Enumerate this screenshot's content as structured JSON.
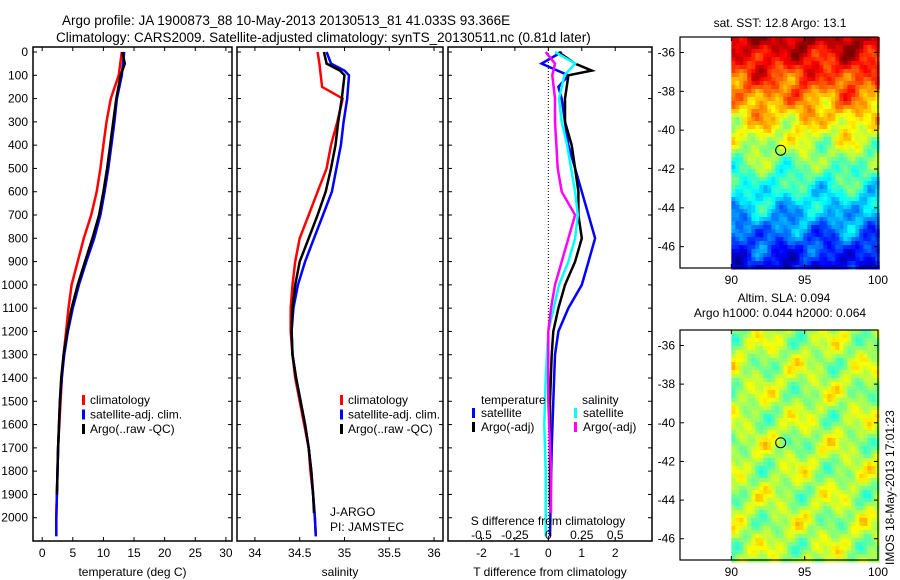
{
  "title": {
    "line1": "Argo profile: JA 1900873_88 10-May-2013 20130513_81 41.033S 93.366E",
    "line2": "Climatology: CARS2009. Satellite-adjusted climatology: synTS_20130511.nc (0.81d later)"
  },
  "colors": {
    "climatology": "#ff0000",
    "satellite": "#0000ff",
    "argo": "#000000",
    "sal_satellite": "#00ffff",
    "sal_argo": "#ff00ff"
  },
  "chart_data": [
    {
      "type": "line",
      "id": "temp",
      "xlabel": "temperature (deg C)",
      "xlim": [
        -1.5,
        31
      ],
      "ylim": [
        0,
        2100
      ],
      "yreversed": true,
      "yticks": [
        0,
        100,
        200,
        300,
        400,
        500,
        600,
        700,
        800,
        900,
        1000,
        1100,
        1200,
        1300,
        1400,
        1500,
        1600,
        1700,
        1800,
        1900,
        2000
      ],
      "xticks": [
        0,
        5,
        10,
        15,
        20,
        25,
        30
      ],
      "legend": [
        "climatology",
        "satellite-adj. clim.",
        "Argo(..raw -QC)"
      ],
      "series": [
        {
          "name": "climatology",
          "color": "#ff0000",
          "depth": [
            0,
            100,
            200,
            300,
            400,
            500,
            600,
            700,
            800,
            900,
            1000,
            1100,
            1200,
            1300,
            1400,
            1500,
            1600,
            1700,
            1800,
            1900,
            2000,
            2080
          ],
          "values": [
            13,
            12.5,
            11.2,
            10.5,
            10,
            9.5,
            8.9,
            8,
            6.8,
            5.8,
            4.8,
            4.3,
            3.9,
            3.5,
            3.2,
            3.0,
            2.8,
            2.6,
            2.5,
            2.4,
            2.3,
            2.3
          ]
        },
        {
          "name": "satellite-adj. clim.",
          "color": "#0000ff",
          "depth": [
            0,
            50,
            100,
            200,
            300,
            400,
            500,
            600,
            700,
            800,
            900,
            1000,
            1100,
            1200,
            1300,
            1400,
            1500,
            1600,
            1700,
            1800,
            1900,
            2000,
            2080
          ],
          "values": [
            13.4,
            13.2,
            13,
            12.2,
            11.8,
            11.3,
            10.8,
            10.2,
            9.5,
            8.5,
            7.2,
            6,
            5,
            4.2,
            3.6,
            3.2,
            2.9,
            2.75,
            2.6,
            2.5,
            2.4,
            2.3,
            2.3
          ]
        },
        {
          "name": "Argo(..raw -QC)",
          "color": "#000000",
          "depth": [
            0,
            50,
            100,
            200,
            300,
            400,
            500,
            600,
            700,
            800,
            900,
            1000,
            1100,
            1200,
            1300,
            1400,
            1500,
            1600,
            1700,
            1800,
            1900
          ],
          "values": [
            13.1,
            13.5,
            12.8,
            12.1,
            11.6,
            11.1,
            10.6,
            10,
            9.3,
            8.2,
            7,
            5.8,
            4.8,
            4.1,
            3.5,
            3.1,
            2.9,
            2.75,
            2.6,
            2.5,
            2.4
          ]
        }
      ]
    },
    {
      "type": "line",
      "id": "sal",
      "xlabel": "salinity",
      "xlim": [
        33.8,
        36.1
      ],
      "ylim": [
        0,
        2100
      ],
      "yreversed": true,
      "xticks": [
        34,
        34.5,
        35,
        35.5,
        36
      ],
      "legend": [
        "climatology",
        "satellite-adj. clim.",
        "Argo(..raw -QC)"
      ],
      "annotation": [
        "J-ARGO",
        "PI: JAMSTEC"
      ],
      "series": [
        {
          "name": "climatology",
          "color": "#ff0000",
          "depth": [
            0,
            50,
            150,
            200,
            300,
            400,
            500,
            600,
            700,
            800,
            900,
            1000,
            1100,
            1200,
            1300,
            1400,
            1500,
            1600,
            1700,
            1800,
            1900,
            2000,
            2080
          ],
          "values": [
            34.7,
            34.72,
            34.75,
            34.98,
            34.92,
            34.85,
            34.8,
            34.7,
            34.6,
            34.5,
            34.45,
            34.42,
            34.4,
            34.4,
            34.42,
            34.45,
            34.5,
            34.55,
            34.6,
            34.62,
            34.65,
            34.67,
            34.68
          ]
        },
        {
          "name": "satellite-adj. clim.",
          "color": "#0000ff",
          "depth": [
            0,
            50,
            80,
            100,
            200,
            300,
            400,
            500,
            600,
            700,
            800,
            900,
            1000,
            1100,
            1200,
            1300,
            1400,
            1500,
            1600,
            1700,
            1800,
            1900,
            2000,
            2080
          ],
          "values": [
            34.8,
            34.85,
            35.0,
            35.05,
            35.03,
            34.99,
            34.96,
            34.91,
            34.86,
            34.76,
            34.66,
            34.56,
            34.48,
            34.43,
            34.41,
            34.42,
            34.46,
            34.51,
            34.56,
            34.6,
            34.63,
            34.65,
            34.67,
            34.68
          ]
        },
        {
          "name": "Argo(..raw -QC)",
          "color": "#000000",
          "depth": [
            0,
            50,
            80,
            100,
            200,
            300,
            400,
            500,
            600,
            700,
            800,
            900,
            1000,
            1100,
            1200,
            1300,
            1400,
            1500,
            1600,
            1700,
            1800,
            1900,
            1980
          ],
          "values": [
            34.77,
            34.8,
            34.95,
            35.0,
            34.97,
            34.93,
            34.9,
            34.85,
            34.79,
            34.7,
            34.6,
            34.5,
            34.45,
            34.42,
            34.41,
            34.42,
            34.46,
            34.51,
            34.56,
            34.6,
            34.63,
            34.65,
            34.66
          ]
        }
      ]
    },
    {
      "type": "line",
      "id": "diff",
      "xlabel": "T difference from climatology",
      "x2label": "S difference from climatology",
      "xlim": [
        -3,
        3.1
      ],
      "ylim": [
        0,
        2100
      ],
      "yreversed": true,
      "xticks": [
        -2,
        -1,
        0,
        1,
        2
      ],
      "x2ticks": [
        "-0.5",
        "-0.25",
        "0",
        "0.25",
        "0.5"
      ],
      "s_scale": 4,
      "legend": {
        "temp_header": "temperature",
        "sal_header": "salinity",
        "items": [
          "satellite",
          "Argo(-adj)",
          "satellite",
          "Argo(-adj)"
        ]
      },
      "series": [
        {
          "name": "temperature satellite",
          "color": "#0000ff",
          "unit": "T",
          "depth": [
            0,
            50,
            100,
            150,
            200,
            300,
            400,
            500,
            600,
            700,
            800,
            900,
            1000,
            1100,
            1200,
            1300,
            1500,
            1700,
            2080
          ],
          "values": [
            0.4,
            -0.2,
            0.6,
            0.3,
            0.4,
            0.5,
            0.6,
            0.8,
            1.0,
            1.2,
            1.4,
            1.2,
            1.0,
            0.6,
            0.3,
            0.2,
            0.15,
            0.1,
            0.05
          ]
        },
        {
          "name": "temperature Argo(-adj)",
          "color": "#000000",
          "unit": "T",
          "depth": [
            0,
            50,
            80,
            100,
            200,
            300,
            400,
            500,
            600,
            700,
            800,
            900,
            1000,
            1100,
            1200,
            1300,
            1500,
            1700,
            1950
          ],
          "values": [
            0.3,
            0.8,
            1.3,
            0.6,
            0.5,
            0.5,
            0.7,
            0.8,
            0.9,
            0.9,
            1.0,
            0.8,
            0.5,
            0.3,
            0.15,
            0.1,
            0.05,
            0.05,
            0.05
          ]
        },
        {
          "name": "salinity satellite",
          "color": "#00ffff",
          "unit": "S",
          "depth": [
            0,
            50,
            100,
            200,
            300,
            400,
            500,
            600,
            700,
            800,
            900,
            1000,
            1100,
            1200,
            1400,
            1600,
            1800,
            2080
          ],
          "values": [
            0.05,
            0.2,
            0.12,
            0.08,
            0.1,
            0.14,
            0.17,
            0.2,
            0.22,
            0.2,
            0.15,
            0.08,
            0.04,
            0.0,
            -0.02,
            -0.03,
            -0.02,
            -0.02
          ]
        },
        {
          "name": "salinity Argo(-adj)",
          "color": "#ff00ff",
          "unit": "S",
          "depth": [
            0,
            50,
            100,
            200,
            300,
            400,
            500,
            600,
            700,
            800,
            900,
            1000,
            1100,
            1200,
            1500,
            1800,
            1980
          ],
          "values": [
            -0.02,
            0.05,
            0.03,
            0.05,
            0.05,
            0.06,
            0.07,
            0.1,
            0.2,
            0.15,
            0.1,
            0.05,
            0.02,
            0.0,
            0.0,
            0.02,
            0.02
          ]
        }
      ]
    },
    {
      "type": "heatmap",
      "id": "sst",
      "title": "sat. SST: 12.8 Argo: 13.1",
      "xlim": [
        86.5,
        100
      ],
      "ylim": [
        -47.1,
        -35.2
      ],
      "xticks": [
        90,
        95,
        100
      ],
      "yticks": [
        -36,
        -38,
        -40,
        -42,
        -44,
        -46
      ],
      "marker": {
        "lon": 93.366,
        "lat": -41.033
      }
    },
    {
      "type": "heatmap",
      "id": "sla",
      "title": "Altim. SLA: 0.094",
      "subtitle": "Argo h1000: 0.044 h2000: 0.064",
      "xlim": [
        86.5,
        100
      ],
      "ylim": [
        -47.1,
        -35.2
      ],
      "xticks": [
        90,
        95,
        100
      ],
      "yticks": [
        -36,
        -38,
        -40,
        -42,
        -44,
        -46
      ],
      "marker": {
        "lon": 93.366,
        "lat": -41.033
      },
      "side_label": "IMOS 18-May-2013 17:01:23"
    }
  ]
}
